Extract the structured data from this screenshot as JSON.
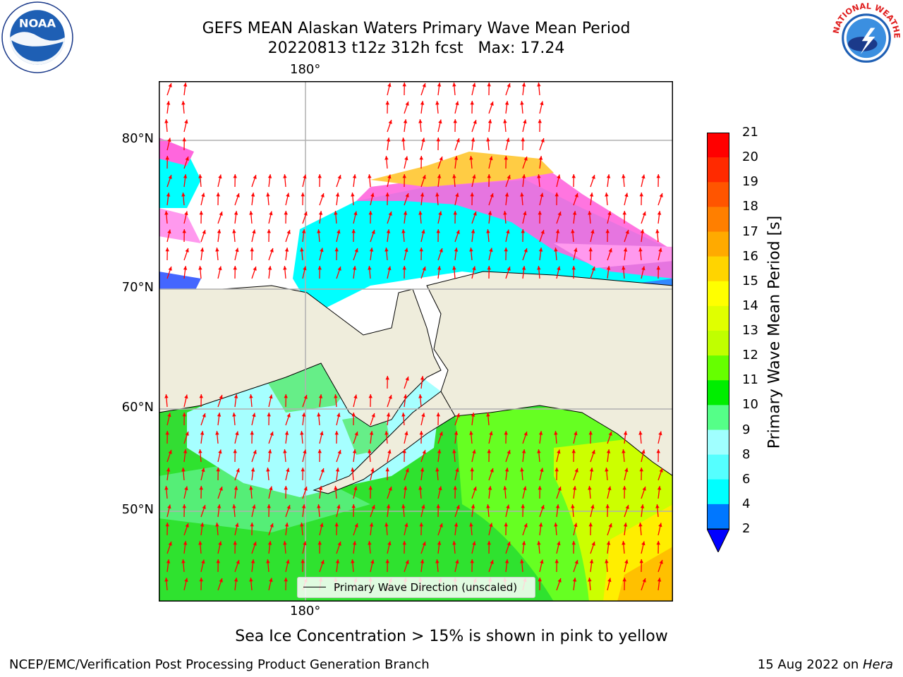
{
  "title": {
    "line1": "GEFS MEAN Alaskan Waters Primary Wave Mean Period",
    "line2": "20220813 t12z 312h fcst   Max: 17.24"
  },
  "map_labels": {
    "lon_top": "180°",
    "lon_bottom": "180°",
    "lat_80": "80°N",
    "lat_70": "70°N",
    "lat_60": "60°N",
    "lat_50": "50°N"
  },
  "legend": {
    "label": "Primary Wave Direction (unscaled)"
  },
  "colorbar": {
    "label": "Primary Wave Mean Period [s]",
    "ticks": [
      "21",
      "20",
      "19",
      "18",
      "17",
      "16",
      "15",
      "14",
      "13",
      "12",
      "11",
      "10",
      "9",
      "8",
      "6",
      "4",
      "2"
    ],
    "colors": [
      "#ff0000",
      "#ff2a00",
      "#ff5500",
      "#ff7f00",
      "#ffaa00",
      "#ffd400",
      "#ffff00",
      "#e0ff00",
      "#c0ff00",
      "#66ff00",
      "#00ee00",
      "#55ff88",
      "#a0ffff",
      "#55ffff",
      "#00ffff",
      "#0077ff",
      "#0000ff"
    ]
  },
  "colors": {
    "land": "#efeddc",
    "ocean_north": "#00ffff",
    "ocean_bering": "#a0ffff",
    "ocean_pacific": "#44ee44",
    "ocean_gulf": "#d8ff00",
    "sea_ice": "#ff66dd",
    "arrow": "#ff0000"
  },
  "note": "Sea Ice Concentration > 15% is shown in pink to yellow",
  "footer": {
    "left": "NCEP/EMC/Verification Post Processing Product Generation Branch",
    "date": "15 Aug 2022 on ",
    "machine": "Hera"
  },
  "logos": {
    "noaa": "NOAA",
    "nws": "NATIONAL WEATHER SERVICE"
  }
}
